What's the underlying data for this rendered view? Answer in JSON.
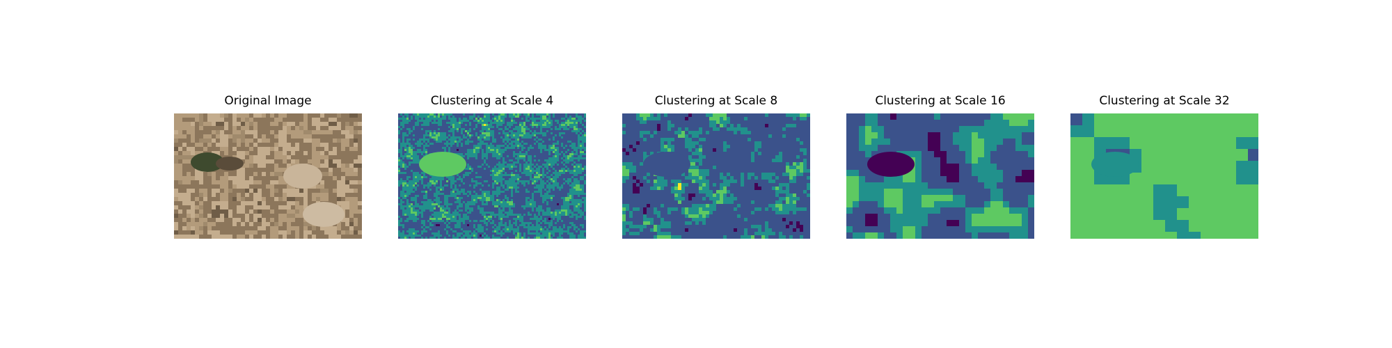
{
  "panels": [
    {
      "title": "Original Image",
      "kind": "photo"
    },
    {
      "title": "Clustering at Scale 4",
      "kind": "cluster",
      "scale": 4
    },
    {
      "title": "Clustering at Scale 8",
      "kind": "cluster",
      "scale": 8
    },
    {
      "title": "Clustering at Scale 16",
      "kind": "cluster",
      "scale": 16
    },
    {
      "title": "Clustering at Scale 32",
      "kind": "cluster",
      "scale": 32
    }
  ],
  "colors": {
    "viridis": [
      "#440154",
      "#3b528b",
      "#21918c",
      "#5ec962",
      "#fde725"
    ],
    "photo": [
      "#a08a6c",
      "#b39b7b",
      "#8c765b",
      "#c4ad8e",
      "#6f5d47"
    ]
  }
}
